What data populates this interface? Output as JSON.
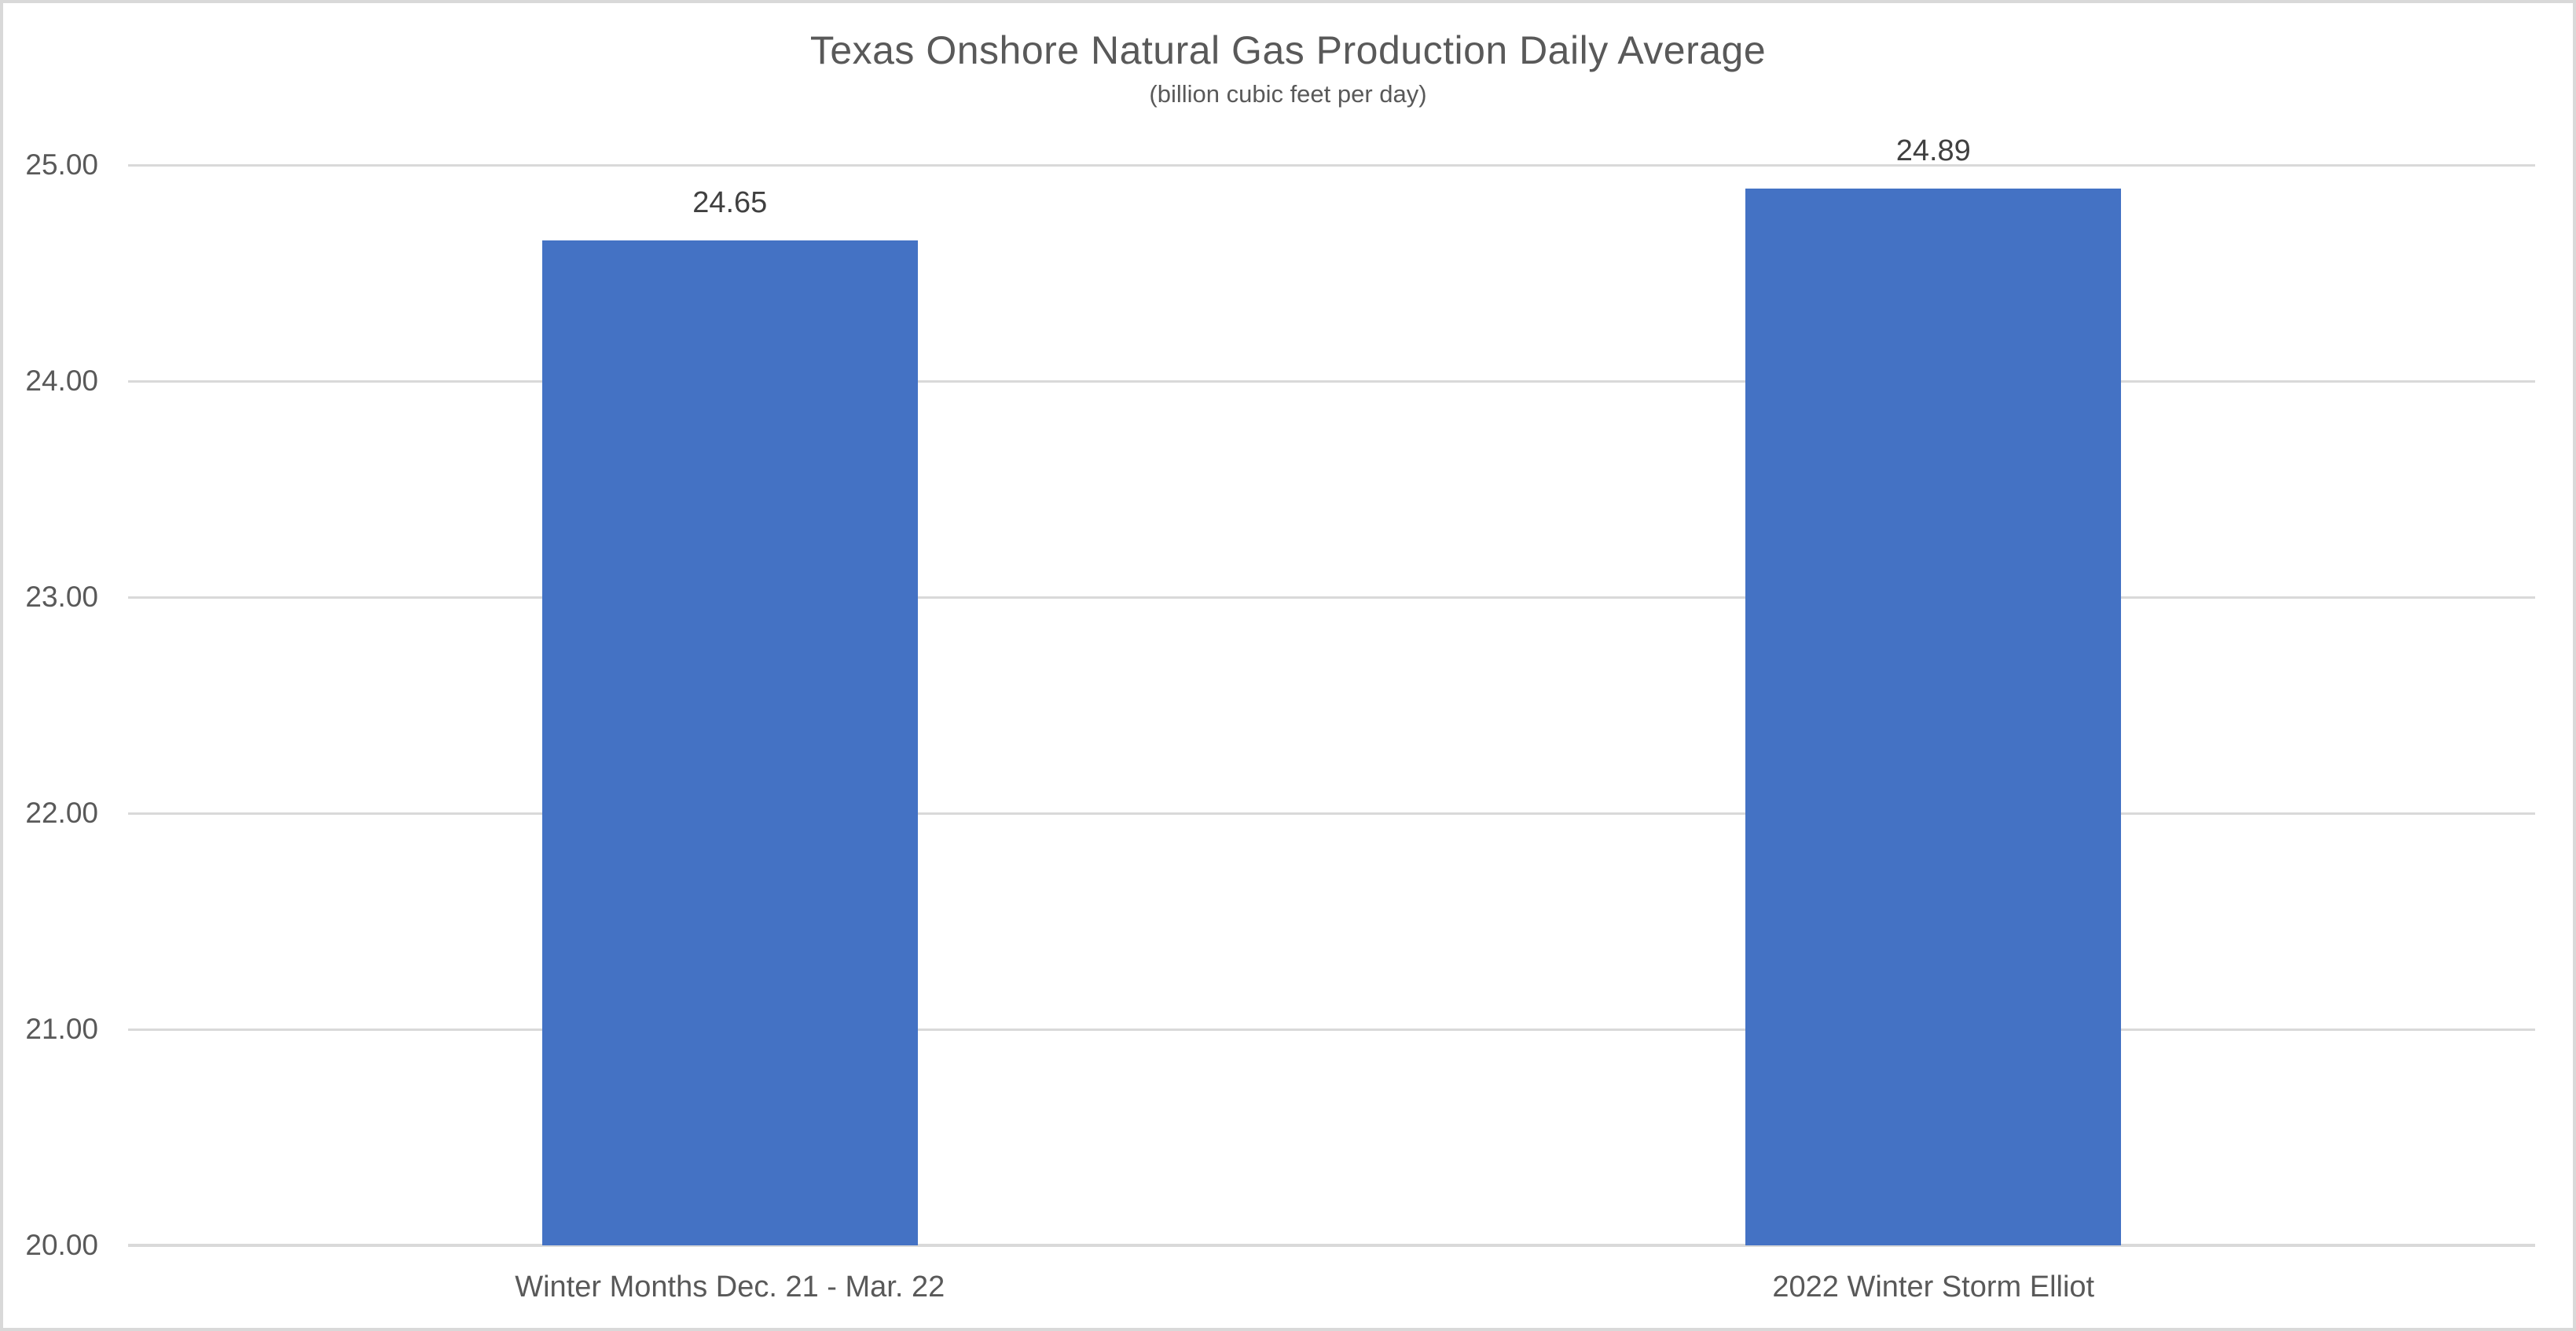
{
  "chart_data": {
    "type": "bar",
    "title": "Texas Onshore Natural Gas Production Daily Average",
    "subtitle": "(billion cubic feet per day)",
    "categories": [
      "Winter Months Dec. 21 - Mar. 22",
      "2022 Winter Storm Elliot"
    ],
    "values": [
      24.65,
      24.89
    ],
    "data_labels": [
      "24.65",
      "24.89"
    ],
    "y_ticks": [
      {
        "value": 25,
        "label": "25.00"
      },
      {
        "value": 24,
        "label": "24.00"
      },
      {
        "value": 23,
        "label": "23.00"
      },
      {
        "value": 22,
        "label": "22.00"
      },
      {
        "value": 21,
        "label": "21.00"
      },
      {
        "value": 20,
        "label": "20.00"
      }
    ],
    "ylim": [
      20,
      25
    ],
    "xlabel": "",
    "ylabel": "",
    "grid": true,
    "legend": "none",
    "colors": {
      "bar": "#4472C4",
      "gridline": "#D9D9D9",
      "axis_line": "#D9D9D9",
      "frame_border": "#D9D9D9",
      "title_text": "#595959",
      "subtitle_text": "#595959",
      "tick_label_text": "#595959",
      "category_label_text": "#595959",
      "data_label_text": "#404040"
    }
  }
}
